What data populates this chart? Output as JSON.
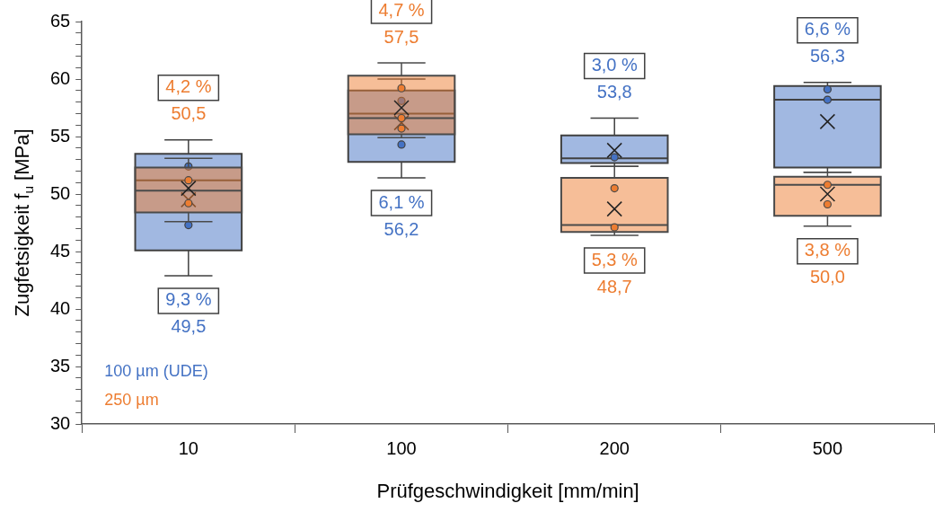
{
  "chart_data": {
    "type": "box",
    "xlabel": "Prüfgeschwindigkeit [mm/min]",
    "ylabel": "Zugfetsigkeit f$_{u}$ [MPa]",
    "categories": [
      "10",
      "100",
      "200",
      "500"
    ],
    "series": [
      {
        "name": "100 µm (UDE)",
        "color": "#4472c4",
        "boxes": [
          {
            "low": 42.9,
            "q1": 45.1,
            "median": 51.2,
            "q3": 53.5,
            "high": 54.7,
            "mean": 49.5,
            "outliers": [
              52.4,
              47.3
            ]
          },
          {
            "low": 51.4,
            "q1": 52.8,
            "median": 57.0,
            "q3": 59.0,
            "high": 60.0,
            "mean": 56.2,
            "outliers": [
              58.1,
              54.3
            ]
          },
          {
            "low": 52.4,
            "q1": 52.7,
            "median": 53.1,
            "q3": 55.1,
            "high": 56.6,
            "mean": 53.8,
            "outliers": [
              53.2
            ]
          },
          {
            "low": 51.9,
            "q1": 52.3,
            "median": 58.2,
            "q3": 59.4,
            "high": 59.7,
            "mean": 56.3,
            "outliers": [
              59.1,
              58.2
            ]
          }
        ]
      },
      {
        "name": "250 µm",
        "color": "#ed7d31",
        "boxes": [
          {
            "low": 47.6,
            "q1": 48.4,
            "median": 50.3,
            "q3": 52.3,
            "high": 53.1,
            "mean": 50.5,
            "outliers": [
              51.2,
              49.2
            ]
          },
          {
            "low": 54.9,
            "q1": 55.2,
            "median": 56.6,
            "q3": 60.3,
            "high": 61.4,
            "mean": 57.5,
            "outliers": [
              59.2,
              56.6,
              55.7
            ]
          },
          {
            "low": 46.4,
            "q1": 46.7,
            "median": 47.3,
            "q3": 51.4,
            "high": 52.4,
            "mean": 48.7,
            "outliers": [
              50.5,
              47.1
            ]
          },
          {
            "low": 47.2,
            "q1": 48.1,
            "median": 50.8,
            "q3": 51.5,
            "high": 51.9,
            "mean": 50.0,
            "outliers": [
              50.8,
              49.1
            ]
          }
        ]
      }
    ],
    "ylim": [
      30,
      65
    ],
    "yticks": [
      30,
      {
        "value": 31,
        "label": null
      },
      {
        "value": 32,
        "label": null
      },
      {
        "value": 33,
        "label": null
      },
      {
        "value": 34,
        "label": null
      },
      35,
      {
        "value": 36,
        "label": null
      },
      {
        "value": 37,
        "label": null
      },
      {
        "value": 38,
        "label": null
      },
      {
        "value": 39,
        "label": null
      },
      40,
      {
        "value": 41,
        "label": null
      },
      {
        "value": 42,
        "label": null
      },
      {
        "value": 43,
        "label": null
      },
      {
        "value": 44,
        "label": null
      },
      45,
      {
        "value": 46,
        "label": null
      },
      {
        "value": 47,
        "label": null
      },
      {
        "value": 48,
        "label": null
      },
      {
        "value": 49,
        "label": null
      },
      50,
      {
        "value": 51,
        "label": null
      },
      {
        "value": 52,
        "label": null
      },
      {
        "value": 53,
        "label": null
      },
      {
        "value": 54,
        "label": null
      },
      55,
      {
        "value": 56,
        "label": null
      },
      {
        "value": 57,
        "label": null
      },
      {
        "value": 58,
        "label": null
      },
      {
        "value": 59,
        "label": null
      },
      60,
      {
        "value": 61,
        "label": null
      },
      {
        "value": 62,
        "label": null
      },
      {
        "value": 63,
        "label": null
      },
      {
        "value": 64,
        "label": null
      },
      65
    ],
    "legend": "bottom left",
    "annotations": [
      "9,3 %",
      "49,5",
      "4,2 %",
      "50,5",
      "6,1 %",
      "56,2",
      "4,7 %",
      "57,5",
      "3,0 %",
      "53,8",
      "5,3 %",
      "48,7",
      "6,6 %",
      "56,3",
      "3,8 %",
      "50,0"
    ]
  }
}
